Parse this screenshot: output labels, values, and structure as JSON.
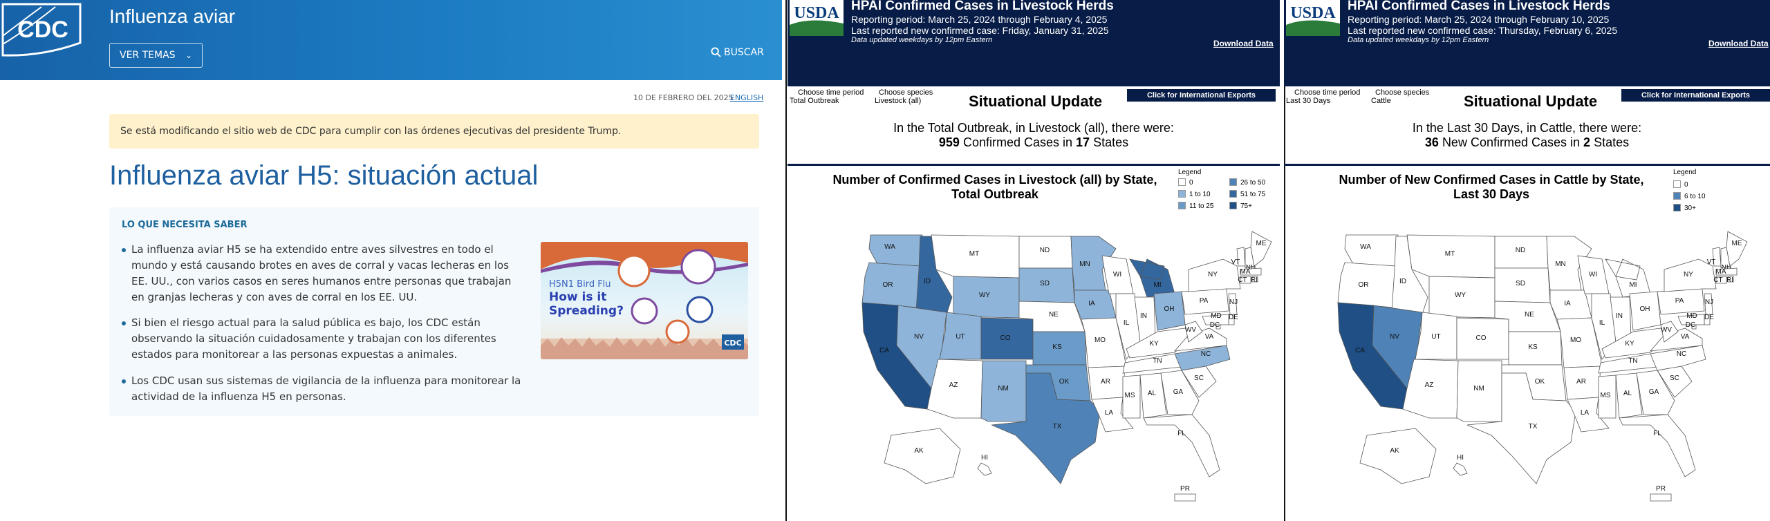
{
  "cdc": {
    "site_title": "Influenza aviar",
    "logo_text": "CDC",
    "ver_temas": "VER TEMAS",
    "buscar": "BUSCAR",
    "date": "10 DE FEBRERO DEL 2025",
    "lang": "ENGLISH",
    "alert": "Se está modificando el sitio web de CDC para cumplir con las órdenes ejecutivas del presidente Trump.",
    "heading": "Influenza aviar H5: situación actual",
    "box_heading": "LO QUE NECESITA SABER",
    "bullets": [
      "La influenza aviar H5 se ha extendido entre aves silvestres en todo el mundo y está causando brotes en aves de corral y vacas lecheras en los EE. UU., con varios casos en seres humanos entre personas que trabajan en granjas lecheras y con aves de corral en los EE. UU.",
      "Si bien el riesgo actual para la salud pública es bajo, los CDC están observando la situación cuidadosamente y trabajan con los diferentes estados para monitorear a las personas expuestas a animales.",
      "Los CDC usan sus sistemas de vigilancia de la influenza para monitorear la actividad de la influenza H5 en personas."
    ],
    "image": {
      "line1": "H5N1 Bird Flu",
      "line2": "How is it",
      "line3": "Spreading?",
      "badge": "CDC"
    }
  },
  "colors": {
    "cdc_blue": "#1762a8",
    "usda_navy": "#071c47",
    "alert_bg": "#fff1cc",
    "l0": "#ffffff",
    "l1": "#8eb4d9",
    "l2": "#6a9bc9",
    "l3": "#4f83b7",
    "l4": "#35679f",
    "l5": "#1f4f85"
  },
  "usda_left": {
    "title": "HPAI Confirmed Cases in Livestock Herds",
    "period": "Reporting period: March 25, 2024 through February 4, 2025",
    "last": "Last reported new confirmed case: Friday, January 31, 2025",
    "note": "Data updated weekdays by 12pm Eastern",
    "download": "Download Data",
    "f1_label": "Choose time period",
    "f1_value": "Total Outbreak",
    "f2_label": "Choose species",
    "f2_value": "Livestock (all)",
    "situational": "Situational Update",
    "intl": "Click for International Exports",
    "summary_line1": "In the Total Outbreak, in Livestock (all), there were:",
    "count": "959",
    "count_text": "Confirmed Cases in",
    "states": "17",
    "states_text": "States",
    "chart_title1": "Number of Confirmed Cases in Livestock (all) by State,",
    "chart_title2": "Total Outbreak",
    "legend_title": "Legend",
    "legend": [
      "0",
      "1 to 10",
      "11 to 25",
      "26 to 50",
      "51 to 75",
      "75+"
    ]
  },
  "usda_right": {
    "title": "HPAI Confirmed Cases in Livestock Herds",
    "period": "Reporting period: March 25, 2024 through February 10, 2025",
    "last": "Last reported new confirmed case: Thursday, February 6, 2025",
    "note": "Data updated weekdays by 12pm Eastern",
    "download": "Download Data",
    "f1_label": "Choose time period",
    "f1_value": "Last 30 Days",
    "f2_label": "Choose species",
    "f2_value": "Cattle",
    "situational": "Situational Update",
    "intl": "Click for International Exports",
    "summary_line1": "In the Last 30 Days, in Cattle, there were:",
    "count": "36",
    "count_text": "New Confirmed Cases in",
    "states": "2",
    "states_text": "States",
    "chart_title1": "Number of New Confirmed Cases in Cattle by State,",
    "chart_title2": "Last 30 Days",
    "legend_title": "Legend",
    "legend": [
      "0",
      "6 to 10",
      "30+"
    ]
  },
  "states": [
    "WA",
    "OR",
    "CA",
    "ID",
    "NV",
    "MT",
    "WY",
    "UT",
    "AZ",
    "CO",
    "NM",
    "ND",
    "SD",
    "NE",
    "KS",
    "OK",
    "TX",
    "MN",
    "IA",
    "MO",
    "AR",
    "LA",
    "WI",
    "IL",
    "MI",
    "IN",
    "OH",
    "KY",
    "TN",
    "MS",
    "AL",
    "GA",
    "FL",
    "SC",
    "NC",
    "VA",
    "WV",
    "PA",
    "NY",
    "VT",
    "NH",
    "ME",
    "MA",
    "CT",
    "RI",
    "NJ",
    "DE",
    "MD",
    "DC",
    "AK",
    "HI",
    "PR"
  ]
}
